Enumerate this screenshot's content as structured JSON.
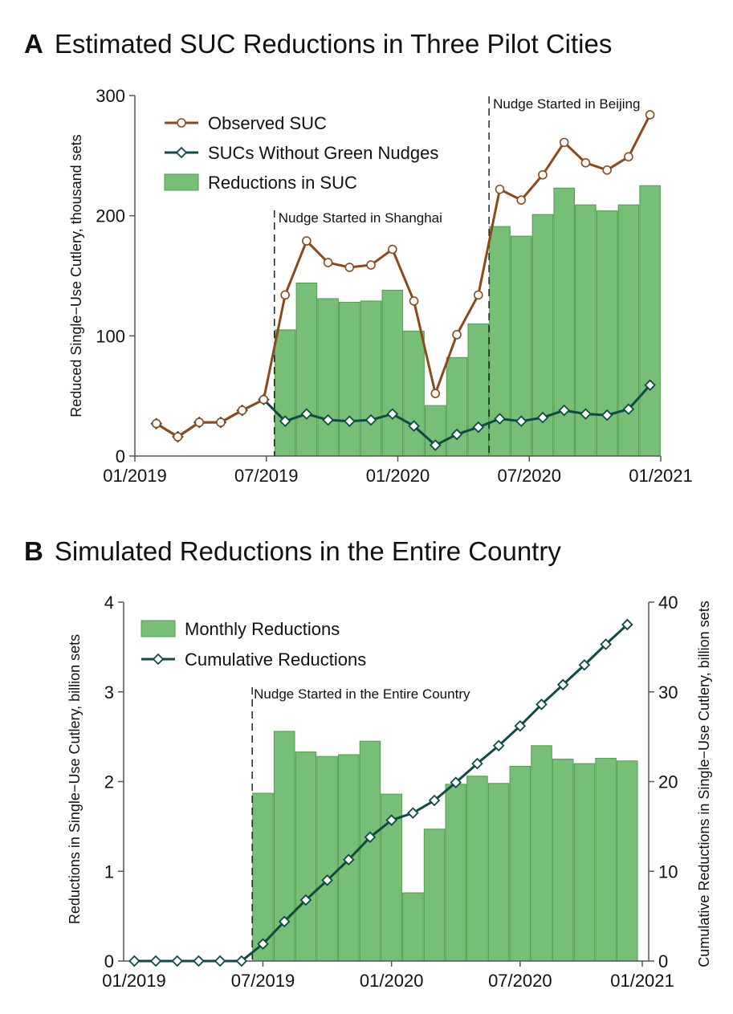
{
  "panels": {
    "a": {
      "letter": "A",
      "title": "Estimated SUC Reductions in Three Pilot Cities"
    },
    "b": {
      "letter": "B",
      "title": "Simulated Reductions in the Entire Country"
    }
  },
  "colors": {
    "observed": "#8B4A1C",
    "without": "#0F4A44",
    "bar": "#77BF77",
    "bar_edge": "#4E9B4E"
  },
  "chart_data": [
    {
      "type": "bar+line",
      "title": "Estimated SUC Reductions in Three Pilot Cities",
      "ylabel": "Reduced Single−Use Cutlery, thousand sets",
      "ylim": [
        0,
        300
      ],
      "yticks": [
        0,
        100,
        200,
        300
      ],
      "xticks": [
        "01/2019",
        "07/2019",
        "01/2020",
        "07/2020",
        "01/2021"
      ],
      "x": [
        "2019-01",
        "2019-02",
        "2019-03",
        "2019-04",
        "2019-05",
        "2019-06",
        "2019-07",
        "2019-08",
        "2019-09",
        "2019-10",
        "2019-11",
        "2019-12",
        "2020-01",
        "2020-02",
        "2020-03",
        "2020-04",
        "2020-05",
        "2020-06",
        "2020-07",
        "2020-08",
        "2020-09",
        "2020-10",
        "2020-11",
        "2020-12"
      ],
      "series": [
        {
          "name": "Observed SUC",
          "kind": "line",
          "values": [
            27,
            16,
            28,
            28,
            38,
            47,
            134,
            179,
            161,
            157,
            159,
            172,
            129,
            52,
            101,
            134,
            222,
            213,
            234,
            261,
            244,
            238,
            249,
            284
          ]
        },
        {
          "name": "SUCs Without Green Nudges",
          "kind": "line",
          "values": [
            27,
            16,
            28,
            28,
            38,
            47,
            29,
            35,
            30,
            29,
            30,
            35,
            25,
            9,
            18,
            24,
            31,
            29,
            32,
            38,
            35,
            34,
            39,
            59
          ]
        },
        {
          "name": "Reductions in SUC",
          "kind": "bar",
          "values": [
            0,
            0,
            0,
            0,
            0,
            0,
            105,
            144,
            131,
            128,
            129,
            138,
            104,
            42,
            82,
            110,
            191,
            183,
            201,
            223,
            209,
            204,
            209,
            225
          ]
        }
      ],
      "legend_position": "top-left",
      "annotations": [
        {
          "text": "Nudge Started in Shanghai",
          "at": "2019-06"
        },
        {
          "text": "Nudge Started in Beijing",
          "at": "2020-04"
        }
      ]
    },
    {
      "type": "bar+line",
      "title": "Simulated Reductions in the Entire Country",
      "ylabel": "Reductions in Single−Use Cutlery, billion sets",
      "y2label": "Cumulative Reductions in Single−Use Cutlery, billion sets",
      "ylim": [
        0,
        4
      ],
      "y2lim": [
        0,
        40
      ],
      "yticks": [
        0,
        1,
        2,
        3,
        4
      ],
      "y2ticks": [
        0,
        10,
        20,
        30,
        40
      ],
      "xticks": [
        "01/2019",
        "07/2019",
        "01/2020",
        "07/2020",
        "01/2021"
      ],
      "x": [
        "2019-01",
        "2019-02",
        "2019-03",
        "2019-04",
        "2019-05",
        "2019-06",
        "2019-07",
        "2019-08",
        "2019-09",
        "2019-10",
        "2019-11",
        "2019-12",
        "2020-01",
        "2020-02",
        "2020-03",
        "2020-04",
        "2020-05",
        "2020-06",
        "2020-07",
        "2020-08",
        "2020-09",
        "2020-10",
        "2020-11",
        "2020-12"
      ],
      "series": [
        {
          "name": "Monthly Reductions",
          "kind": "bar",
          "axis": "left",
          "values": [
            0,
            0,
            0,
            0,
            0,
            0,
            1.87,
            2.56,
            2.33,
            2.28,
            2.3,
            2.45,
            1.86,
            0.76,
            1.47,
            1.97,
            2.06,
            1.98,
            2.17,
            2.4,
            2.25,
            2.2,
            2.26,
            2.23
          ]
        },
        {
          "name": "Cumulative Reductions",
          "kind": "line",
          "axis": "right",
          "values": [
            0,
            0,
            0,
            0,
            0,
            0,
            1.9,
            4.4,
            6.8,
            9.0,
            11.3,
            13.8,
            15.7,
            16.5,
            17.9,
            19.9,
            22.0,
            24.0,
            26.2,
            28.6,
            30.8,
            33.0,
            35.3,
            37.5
          ]
        }
      ],
      "legend_position": "top-left",
      "annotations": [
        {
          "text": "Nudge Started in the Entire Country",
          "at": "2019-06"
        }
      ]
    }
  ]
}
